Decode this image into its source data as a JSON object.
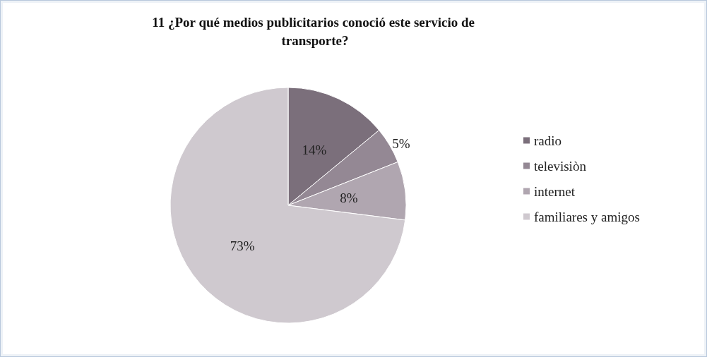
{
  "chart_data": {
    "type": "pie",
    "title": "11 ¿Por qué medios publicitarios conoció este servicio de transporte?",
    "categories": [
      "radio",
      "televisiòn",
      "internet",
      "familiares y amigos"
    ],
    "values": [
      14,
      5,
      8,
      73
    ],
    "colors": [
      "#7b6f7b",
      "#948894",
      "#b0a6b0",
      "#cfc9cf"
    ],
    "value_labels": [
      "14%",
      "5%",
      "8%",
      "73%"
    ],
    "legend": "right"
  }
}
